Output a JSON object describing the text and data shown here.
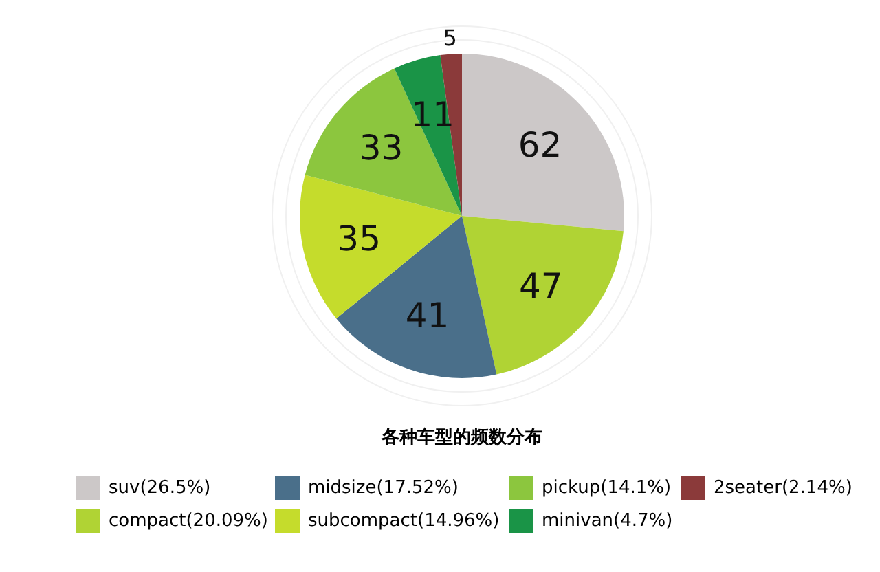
{
  "chart_data": {
    "type": "pie",
    "title": "各种车型的频数分布",
    "categories": [
      "suv(26.5%)",
      "compact(20.09%)",
      "midsize(17.52%)",
      "subcompact(14.96%)",
      "pickup(14.1%)",
      "minivan(4.7%)",
      "2seater(2.14%)"
    ],
    "values": [
      62,
      47,
      41,
      35,
      33,
      11,
      5
    ],
    "colors": [
      "#ccc8c8",
      "#b0d334",
      "#4a6f8a",
      "#c5dc2c",
      "#8cc63e",
      "#1a9447",
      "#8b3a3a"
    ],
    "data_labels": true,
    "legend": "bottom"
  }
}
